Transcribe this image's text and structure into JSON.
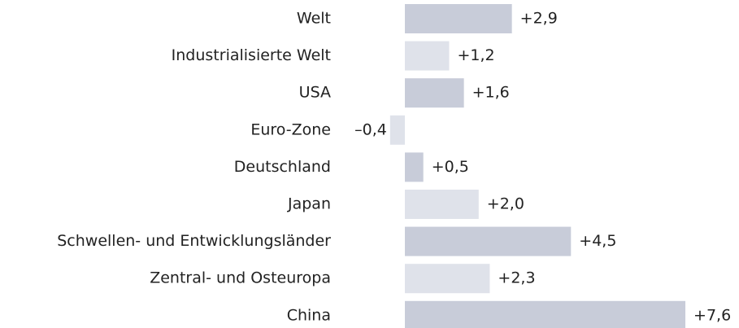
{
  "chart_data": {
    "type": "bar",
    "orientation": "horizontal",
    "categories": [
      "Welt",
      "Industrialisierte Welt",
      "USA",
      "Euro-Zone",
      "Deutschland",
      "Japan",
      "Schwellen- und Entwicklungsländer",
      "Zentral- und Osteuropa",
      "China"
    ],
    "values": [
      2.9,
      1.2,
      1.6,
      -0.4,
      0.5,
      2.0,
      4.5,
      2.3,
      7.6
    ],
    "value_labels": [
      "+2,9",
      "+1,2",
      "+1,6",
      "–0,4",
      "+0,5",
      "+2,0",
      "+4,5",
      "+2,3",
      "+7,6"
    ],
    "colors": [
      "#c8ccd9",
      "#dfe2ea",
      "#c8ccd9",
      "#dfe2ea",
      "#c8ccd9",
      "#dfe2ea",
      "#c8ccd9",
      "#dfe2ea",
      "#c8ccd9"
    ]
  }
}
